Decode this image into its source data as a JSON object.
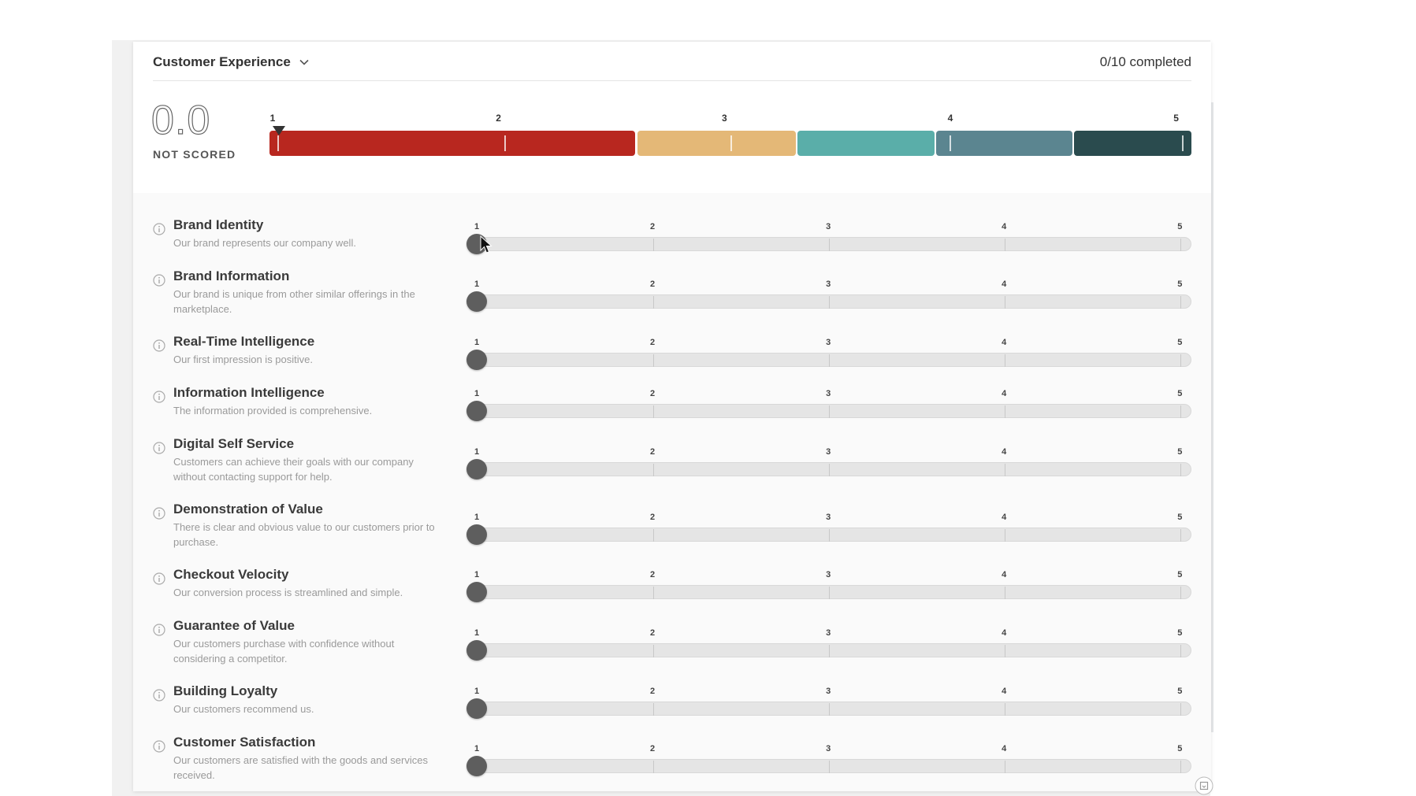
{
  "header": {
    "section_title": "Customer Experience",
    "chevron_icon": "chevron-down-icon",
    "completed_text": "0/10 completed"
  },
  "score": {
    "value": "0.0",
    "label": "NOT SCORED",
    "current": 1
  },
  "scale": {
    "numbers": [
      "1",
      "2",
      "3",
      "4",
      "5"
    ],
    "colors": [
      "#b8271f",
      "#e4b877",
      "#5aaea9",
      "#5b8590",
      "#2a4b4e"
    ]
  },
  "criteria": [
    {
      "title": "Brand Identity",
      "description": "Our brand represents our company well.",
      "value": 1
    },
    {
      "title": "Brand Information",
      "description": "Our brand is unique from other similar offerings in the marketplace.",
      "value": 1
    },
    {
      "title": "Real-Time Intelligence",
      "description": "Our first impression is positive.",
      "value": 1
    },
    {
      "title": "Information Intelligence",
      "description": "The information provided is comprehensive.",
      "value": 1
    },
    {
      "title": "Digital Self Service",
      "description": "Customers can achieve their goals with our company without contacting support for help.",
      "value": 1
    },
    {
      "title": "Demonstration of Value",
      "description": "There is clear and obvious value to our customers prior to purchase.",
      "value": 1
    },
    {
      "title": "Checkout Velocity",
      "description": "Our conversion process is streamlined and simple.",
      "value": 1
    },
    {
      "title": "Guarantee of Value",
      "description": "Our customers purchase with confidence without considering a competitor.",
      "value": 1
    },
    {
      "title": "Building Loyalty",
      "description": "Our customers recommend us.",
      "value": 1
    },
    {
      "title": "Customer Satisfaction",
      "description": "Our customers are satisfied with the goods and services received.",
      "value": 1
    }
  ],
  "slider_labels": [
    "1",
    "2",
    "3",
    "4",
    "5"
  ],
  "icons": {
    "info": "info-icon",
    "cursor": "mouse-pointer-icon",
    "corner": "expand-icon"
  }
}
